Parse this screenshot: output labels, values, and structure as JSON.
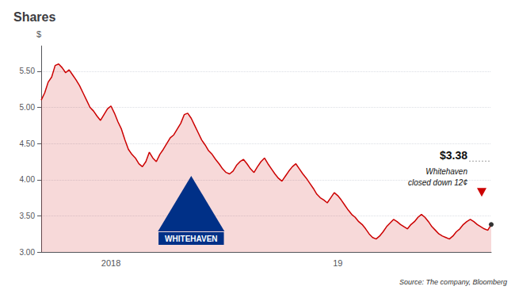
{
  "chart_data": {
    "type": "line",
    "title": "Shares",
    "ylabel": "$",
    "source": "Source: The company, Bloomberg",
    "annotations": [
      {
        "text": "$3.38"
      },
      {
        "text": "Whitehaven\nclosed down 12¢"
      },
      {
        "text": "WHITEHAVEN",
        "color": "#003087"
      }
    ],
    "color": "#cc0000",
    "grid": true,
    "ylim": [
      3.0,
      5.85
    ],
    "yticks": [
      {
        "value": 3.0,
        "label": "3.00"
      },
      {
        "value": 3.5,
        "label": "3.50"
      },
      {
        "value": 4.0,
        "label": "4.00"
      },
      {
        "value": 4.5,
        "label": "4.50"
      },
      {
        "value": 5.0,
        "label": "5.00"
      },
      {
        "value": 5.5,
        "label": "5.50"
      }
    ],
    "categories": [
      null,
      null,
      null,
      null,
      null,
      null,
      null,
      null,
      null,
      null,
      null,
      null,
      null,
      null,
      null,
      null,
      null,
      null,
      null,
      null,
      "2018",
      null,
      null,
      null,
      null,
      null,
      null,
      null,
      null,
      null,
      null,
      null,
      null,
      null,
      null,
      null,
      null,
      null,
      null,
      null,
      null,
      null,
      null,
      null,
      null,
      null,
      null,
      null,
      null,
      null,
      null,
      null,
      null,
      null,
      null,
      null,
      null,
      null,
      null,
      null,
      null,
      null,
      null,
      null,
      null,
      null,
      null,
      null,
      null,
      null,
      null,
      null,
      null,
      null,
      null,
      null,
      null,
      null,
      null,
      null,
      null,
      null,
      null,
      null,
      null,
      "19",
      null,
      null,
      null,
      null,
      null,
      null,
      null,
      null,
      null,
      null,
      null,
      null,
      null,
      null,
      null,
      null,
      null,
      null,
      null,
      null,
      null,
      null,
      null,
      null,
      null,
      null,
      null,
      null,
      null,
      null,
      null,
      null,
      null,
      null,
      null,
      null,
      null,
      null,
      null,
      null,
      null,
      null,
      null,
      null
    ],
    "values": [
      5.1,
      5.2,
      5.35,
      5.42,
      5.58,
      5.6,
      5.55,
      5.48,
      5.52,
      5.45,
      5.38,
      5.3,
      5.2,
      5.1,
      5.0,
      4.95,
      4.88,
      4.82,
      4.9,
      4.98,
      5.02,
      4.92,
      4.8,
      4.7,
      4.55,
      4.42,
      4.35,
      4.3,
      4.22,
      4.18,
      4.25,
      4.38,
      4.3,
      4.25,
      4.35,
      4.42,
      4.5,
      4.58,
      4.62,
      4.7,
      4.78,
      4.9,
      4.92,
      4.85,
      4.75,
      4.65,
      4.55,
      4.48,
      4.4,
      4.35,
      4.28,
      4.22,
      4.15,
      4.1,
      4.08,
      4.12,
      4.2,
      4.25,
      4.28,
      4.22,
      4.15,
      4.1,
      4.18,
      4.25,
      4.3,
      4.22,
      4.15,
      4.08,
      4.02,
      3.98,
      4.05,
      4.12,
      4.18,
      4.22,
      4.15,
      4.08,
      4.02,
      3.95,
      3.88,
      3.8,
      3.75,
      3.72,
      3.68,
      3.75,
      3.82,
      3.78,
      3.72,
      3.65,
      3.58,
      3.52,
      3.48,
      3.42,
      3.38,
      3.32,
      3.25,
      3.2,
      3.18,
      3.22,
      3.28,
      3.35,
      3.4,
      3.45,
      3.42,
      3.38,
      3.35,
      3.32,
      3.38,
      3.42,
      3.48,
      3.52,
      3.48,
      3.42,
      3.35,
      3.3,
      3.25,
      3.22,
      3.2,
      3.18,
      3.22,
      3.28,
      3.32,
      3.38,
      3.42,
      3.45,
      3.42,
      3.38,
      3.35,
      3.32,
      3.3,
      3.38
    ]
  }
}
